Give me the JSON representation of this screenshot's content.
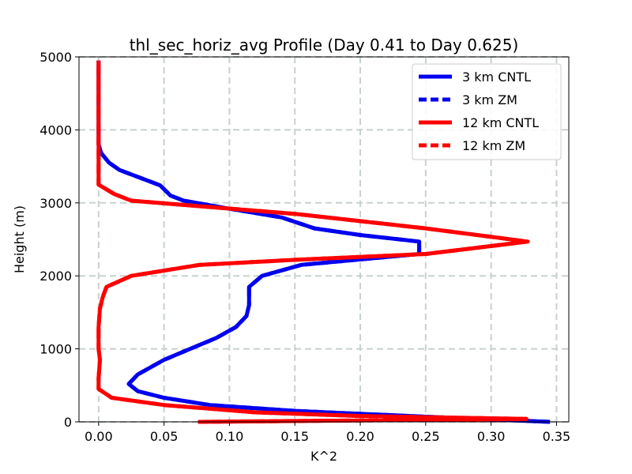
{
  "chart_data": {
    "type": "line",
    "title": "thl_sec_horiz_avg Profile (Day 0.41 to Day 0.625)",
    "xlabel": "K^2",
    "ylabel": "Height (m)",
    "xlim": [
      -0.015,
      0.3594
    ],
    "ylim": [
      0,
      5000
    ],
    "xticks": [
      0.0,
      0.05,
      0.1,
      0.15,
      0.2,
      0.25,
      0.3,
      0.35
    ],
    "xtick_labels": [
      "0.00",
      "0.05",
      "0.10",
      "0.15",
      "0.20",
      "0.25",
      "0.30",
      "0.35"
    ],
    "yticks": [
      0,
      1000,
      2000,
      3000,
      4000,
      5000
    ],
    "ytick_labels": [
      "0",
      "1000",
      "2000",
      "3000",
      "4000",
      "5000"
    ],
    "grid": true,
    "legend_position": "top-right",
    "series": [
      {
        "name": "3 km CNTL",
        "color": "#0000ee",
        "dash": "solid",
        "points": [
          [
            0.345,
            0
          ],
          [
            0.25,
            70
          ],
          [
            0.15,
            150
          ],
          [
            0.085,
            230
          ],
          [
            0.05,
            330
          ],
          [
            0.03,
            420
          ],
          [
            0.023,
            520
          ],
          [
            0.03,
            650
          ],
          [
            0.05,
            850
          ],
          [
            0.07,
            1000
          ],
          [
            0.09,
            1150
          ],
          [
            0.105,
            1300
          ],
          [
            0.113,
            1450
          ],
          [
            0.115,
            1600
          ],
          [
            0.115,
            1850
          ],
          [
            0.125,
            2000
          ],
          [
            0.155,
            2150
          ],
          [
            0.245,
            2300
          ],
          [
            0.245,
            2470
          ],
          [
            0.2,
            2560
          ],
          [
            0.165,
            2650
          ],
          [
            0.14,
            2800
          ],
          [
            0.1,
            2920
          ],
          [
            0.065,
            3030
          ],
          [
            0.055,
            3100
          ],
          [
            0.047,
            3240
          ],
          [
            0.016,
            3450
          ],
          [
            0.008,
            3550
          ],
          [
            0.002,
            3680
          ],
          [
            0.0,
            3800
          ],
          [
            0.0,
            4000
          ],
          [
            0.0,
            4500
          ],
          [
            0.0,
            4950
          ]
        ]
      },
      {
        "name": "3 km ZM",
        "color": "#0000ee",
        "dash": "dashed",
        "points": [
          [
            0.345,
            0
          ],
          [
            0.25,
            70
          ],
          [
            0.15,
            150
          ],
          [
            0.085,
            230
          ],
          [
            0.05,
            330
          ],
          [
            0.03,
            420
          ],
          [
            0.023,
            520
          ],
          [
            0.03,
            650
          ],
          [
            0.05,
            850
          ],
          [
            0.07,
            1000
          ],
          [
            0.09,
            1150
          ],
          [
            0.105,
            1300
          ],
          [
            0.113,
            1450
          ],
          [
            0.115,
            1600
          ],
          [
            0.115,
            1850
          ],
          [
            0.125,
            2000
          ],
          [
            0.155,
            2150
          ],
          [
            0.245,
            2300
          ],
          [
            0.245,
            2470
          ],
          [
            0.2,
            2560
          ],
          [
            0.165,
            2650
          ],
          [
            0.14,
            2800
          ],
          [
            0.1,
            2920
          ],
          [
            0.065,
            3030
          ],
          [
            0.055,
            3100
          ],
          [
            0.047,
            3240
          ],
          [
            0.016,
            3450
          ],
          [
            0.008,
            3550
          ],
          [
            0.002,
            3680
          ],
          [
            0.0,
            3800
          ],
          [
            0.0,
            4000
          ],
          [
            0.0,
            4500
          ],
          [
            0.0,
            4950
          ]
        ]
      },
      {
        "name": "12 km CNTL",
        "color": "#ff0000",
        "dash": "solid",
        "points": [
          [
            0.076,
            0
          ],
          [
            0.327,
            40
          ],
          [
            0.2,
            80
          ],
          [
            0.12,
            130
          ],
          [
            0.05,
            230
          ],
          [
            0.01,
            330
          ],
          [
            0.0,
            450
          ],
          [
            0.0,
            600
          ],
          [
            0.001,
            850
          ],
          [
            0.0,
            1000
          ],
          [
            0.0,
            1300
          ],
          [
            0.001,
            1550
          ],
          [
            0.003,
            1700
          ],
          [
            0.006,
            1850
          ],
          [
            0.025,
            2000
          ],
          [
            0.077,
            2150
          ],
          [
            0.15,
            2220
          ],
          [
            0.25,
            2300
          ],
          [
            0.328,
            2470
          ],
          [
            0.25,
            2650
          ],
          [
            0.15,
            2850
          ],
          [
            0.08,
            2950
          ],
          [
            0.025,
            3030
          ],
          [
            0.012,
            3120
          ],
          [
            0.0,
            3250
          ],
          [
            0.0,
            3500
          ],
          [
            0.0,
            4000
          ],
          [
            0.0,
            4500
          ],
          [
            0.0,
            4950
          ]
        ]
      },
      {
        "name": "12 km ZM",
        "color": "#ff0000",
        "dash": "dashed",
        "points": [
          [
            0.076,
            0
          ],
          [
            0.327,
            40
          ],
          [
            0.2,
            80
          ],
          [
            0.12,
            130
          ],
          [
            0.05,
            230
          ],
          [
            0.01,
            330
          ],
          [
            0.0,
            450
          ],
          [
            0.0,
            600
          ],
          [
            0.001,
            850
          ],
          [
            0.0,
            1000
          ],
          [
            0.0,
            1300
          ],
          [
            0.001,
            1550
          ],
          [
            0.003,
            1700
          ],
          [
            0.006,
            1850
          ],
          [
            0.025,
            2000
          ],
          [
            0.077,
            2150
          ],
          [
            0.15,
            2220
          ],
          [
            0.25,
            2300
          ],
          [
            0.328,
            2470
          ],
          [
            0.25,
            2650
          ],
          [
            0.15,
            2850
          ],
          [
            0.08,
            2950
          ],
          [
            0.025,
            3030
          ],
          [
            0.012,
            3120
          ],
          [
            0.0,
            3250
          ],
          [
            0.0,
            3500
          ],
          [
            0.0,
            4000
          ],
          [
            0.0,
            4500
          ],
          [
            0.0,
            4950
          ]
        ]
      }
    ]
  }
}
